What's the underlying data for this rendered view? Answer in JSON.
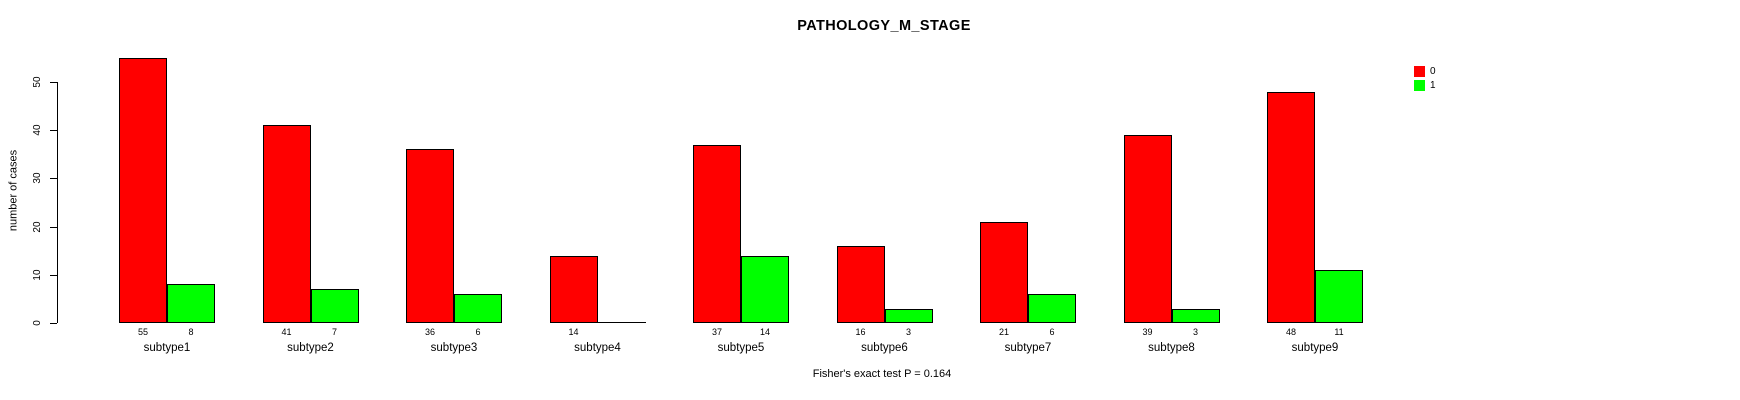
{
  "chart_data": {
    "type": "bar",
    "title": "PATHOLOGY_M_STAGE",
    "ylabel": "number of cases",
    "xlabel": "",
    "annotation": "Fisher's exact test P = 0.164",
    "categories": [
      "subtype1",
      "subtype2",
      "subtype3",
      "subtype4",
      "subtype5",
      "subtype6",
      "subtype7",
      "subtype8",
      "subtype9"
    ],
    "series": [
      {
        "name": "0",
        "color": "#ff0000",
        "values": [
          55,
          41,
          36,
          14,
          37,
          16,
          21,
          39,
          48
        ]
      },
      {
        "name": "1",
        "color": "#00ff00",
        "values": [
          8,
          7,
          6,
          0,
          14,
          3,
          6,
          3,
          11
        ]
      }
    ],
    "bar_count_labels": [
      [
        "55",
        "8"
      ],
      [
        "41",
        "7"
      ],
      [
        "36",
        "6"
      ],
      [
        "14",
        ""
      ],
      [
        "37",
        "14"
      ],
      [
        "16",
        "3"
      ],
      [
        "21",
        "6"
      ],
      [
        "39",
        "3"
      ],
      [
        "48",
        "11"
      ]
    ],
    "y_ticks": [
      0,
      10,
      20,
      30,
      40,
      50
    ],
    "ylim": [
      0,
      57
    ],
    "grid": false,
    "legend_position": "top-right",
    "bar_border_color": "#000000"
  }
}
